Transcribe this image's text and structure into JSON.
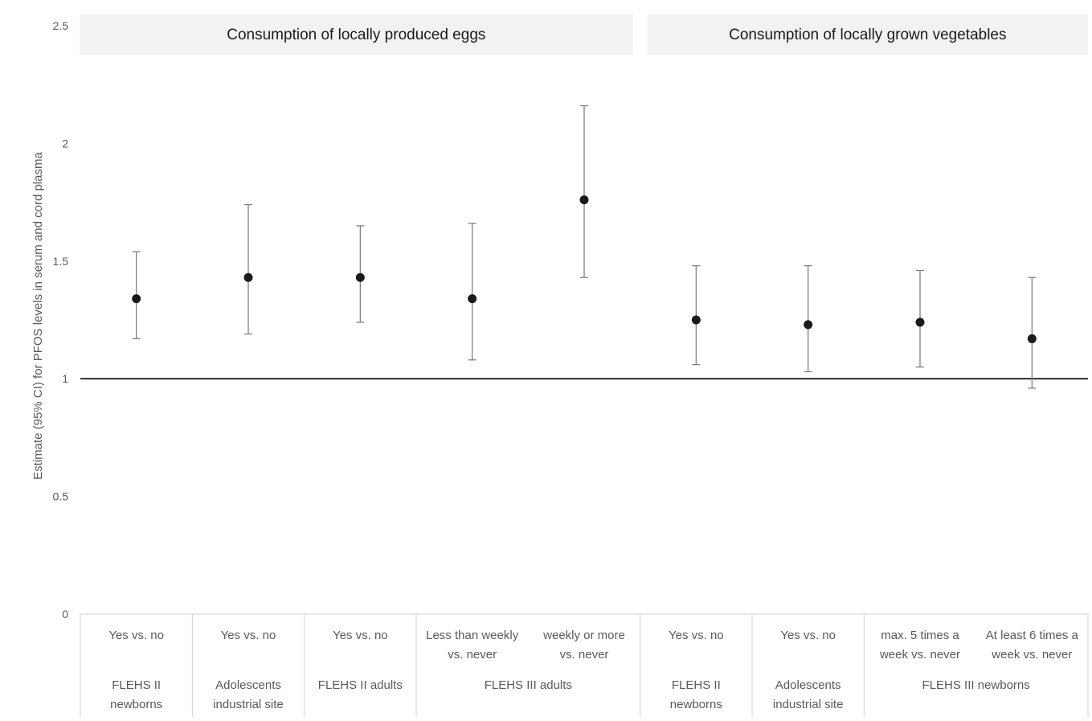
{
  "chart_data": {
    "type": "scatter",
    "title": "",
    "xlabel": "",
    "ylabel": "Estimate (95% CI) for PFOS levels in serum and cord plasma",
    "ylim": [
      0,
      2.5
    ],
    "yticks": [
      {
        "value": 0,
        "label": "0"
      },
      {
        "value": 0.5,
        "label": "0.5"
      },
      {
        "value": 1,
        "label": "1"
      },
      {
        "value": 1.5,
        "label": "1.5"
      },
      {
        "value": 2,
        "label": "2"
      },
      {
        "value": 2.5,
        "label": "2.5"
      }
    ],
    "reference_line": 1,
    "grid": false,
    "panels": [
      {
        "title": "Consumption of locally produced eggs",
        "start": 0,
        "end": 4
      },
      {
        "title": "Consumption of locally grown vegetables",
        "start": 5,
        "end": 8
      }
    ],
    "categories": [
      [
        "Yes vs. no"
      ],
      [
        "Yes vs. no"
      ],
      [
        "Yes vs. no"
      ],
      [
        "Less than weekly",
        "vs. never"
      ],
      [
        "weekly or more",
        "vs. never"
      ],
      [
        "Yes vs. no"
      ],
      [
        "Yes vs. no"
      ],
      [
        "max. 5 times a",
        "week vs. never"
      ],
      [
        "At least 6 times a",
        "week vs. never"
      ]
    ],
    "groups": [
      {
        "label": [
          "FLEHS II",
          "newborns"
        ],
        "start": 0,
        "end": 0
      },
      {
        "label": [
          "Adolescents",
          "industrial site"
        ],
        "start": 1,
        "end": 1
      },
      {
        "label": [
          "FLEHS II adults"
        ],
        "start": 2,
        "end": 2
      },
      {
        "label": [
          "FLEHS III adults"
        ],
        "start": 3,
        "end": 4
      },
      {
        "label": [
          "FLEHS II",
          "newborns"
        ],
        "start": 5,
        "end": 5
      },
      {
        "label": [
          "Adolescents",
          "industrial site"
        ],
        "start": 6,
        "end": 6
      },
      {
        "label": [
          "FLEHS III newborns"
        ],
        "start": 7,
        "end": 8
      }
    ],
    "series": [
      {
        "estimate": [
          1.34,
          1.43,
          1.43,
          1.34,
          1.76,
          1.25,
          1.23,
          1.24,
          1.17
        ],
        "lower": [
          1.17,
          1.19,
          1.24,
          1.08,
          1.43,
          1.06,
          1.03,
          1.05,
          0.96
        ],
        "upper": [
          1.54,
          1.74,
          1.65,
          1.66,
          2.16,
          1.48,
          1.48,
          1.46,
          1.43
        ]
      }
    ],
    "colors": {
      "point": "#1a1a1a",
      "errorbar": "#808080",
      "refline": "#000000",
      "panel_bg": "#f2f2f2",
      "axis_text": "#595959"
    }
  }
}
